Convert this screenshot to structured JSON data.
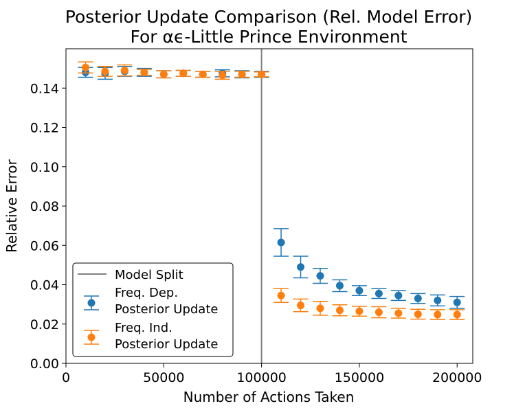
{
  "chart_data": {
    "type": "scatter",
    "title_lines": [
      "Posterior Update Comparison (Rel. Model Error)",
      "For αϵ-Little Prince Environment"
    ],
    "xlabel": "Number of Actions Taken",
    "ylabel": "Relative Error",
    "xlim": [
      0,
      208000
    ],
    "ylim": [
      0,
      0.16
    ],
    "x_ticks": [
      0,
      50000,
      100000,
      150000,
      200000
    ],
    "x_tick_labels": [
      "0",
      "50000",
      "100000",
      "150000",
      "200000"
    ],
    "y_ticks": [
      0,
      0.02,
      0.04,
      0.06,
      0.08,
      0.1,
      0.12,
      0.14
    ],
    "y_tick_labels": [
      "0.00",
      "0.02",
      "0.04",
      "0.06",
      "0.08",
      "0.10",
      "0.12",
      "0.14"
    ],
    "grid": false,
    "legend_position": "lower-left",
    "vline": {
      "x": 100000,
      "name": "Model Split",
      "color": "#808080"
    },
    "series": [
      {
        "name": "Freq. Dep.\nPosterior Update",
        "name_lines": [
          "Freq. Dep.",
          "Posterior Update"
        ],
        "color": "#1f77b4",
        "x": [
          10000,
          20000,
          30000,
          40000,
          50000,
          60000,
          70000,
          80000,
          90000,
          100000,
          110000,
          120000,
          130000,
          140000,
          150000,
          160000,
          170000,
          180000,
          190000,
          200000
        ],
        "y": [
          0.148,
          0.1475,
          0.1485,
          0.148,
          0.147,
          0.1475,
          0.147,
          0.1475,
          0.147,
          0.147,
          0.0615,
          0.049,
          0.0445,
          0.0395,
          0.037,
          0.0355,
          0.0345,
          0.033,
          0.032,
          0.031
        ],
        "err": [
          0.0025,
          0.003,
          0.0025,
          0.002,
          0.0018,
          0.0015,
          0.0015,
          0.0018,
          0.0018,
          0.0015,
          0.007,
          0.0055,
          0.0038,
          0.003,
          0.0025,
          0.0025,
          0.0025,
          0.0025,
          0.0028,
          0.003
        ]
      },
      {
        "name": "Freq. Ind.\nPosterior Update",
        "name_lines": [
          "Freq. Ind.",
          "Posterior Update"
        ],
        "color": "#ff7f0e",
        "x": [
          10000,
          20000,
          30000,
          40000,
          50000,
          60000,
          70000,
          80000,
          90000,
          100000,
          110000,
          120000,
          130000,
          140000,
          150000,
          160000,
          170000,
          180000,
          190000,
          200000
        ],
        "y": [
          0.1505,
          0.1485,
          0.149,
          0.148,
          0.147,
          0.1475,
          0.147,
          0.1465,
          0.147,
          0.147,
          0.0345,
          0.0295,
          0.028,
          0.027,
          0.0265,
          0.026,
          0.0255,
          0.025,
          0.0248,
          0.0248
        ],
        "err": [
          0.0028,
          0.0025,
          0.0028,
          0.0015,
          0.0018,
          0.0015,
          0.0015,
          0.002,
          0.0015,
          0.0012,
          0.0035,
          0.0032,
          0.0035,
          0.0028,
          0.0025,
          0.0028,
          0.0025,
          0.0025,
          0.0025,
          0.0025
        ]
      }
    ]
  }
}
